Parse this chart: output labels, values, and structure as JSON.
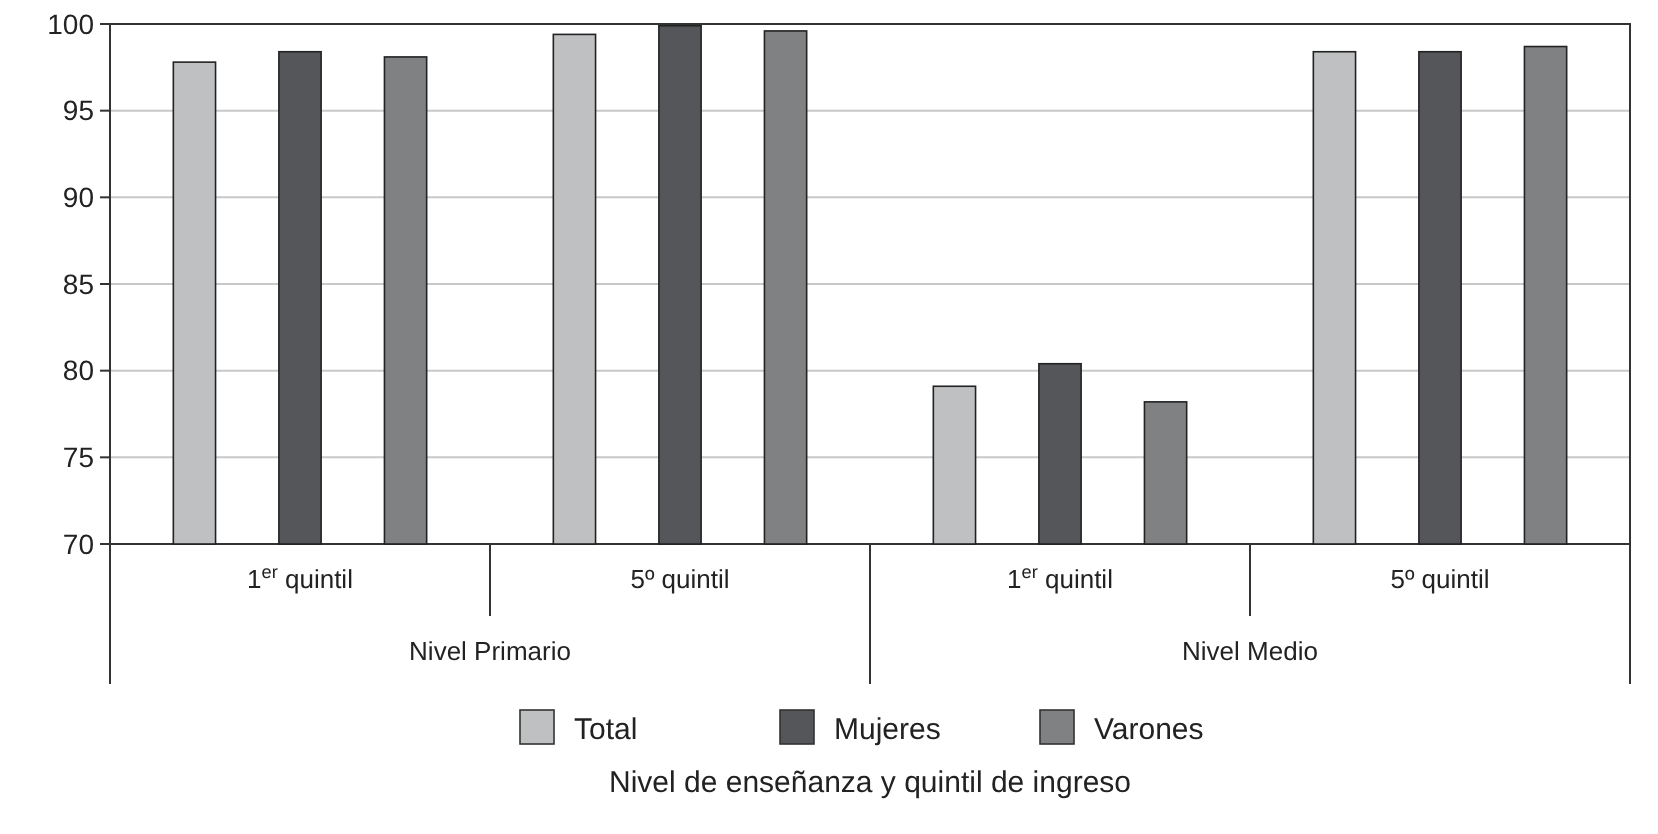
{
  "chart_data": {
    "type": "bar",
    "categories": [
      "1$^{er}$ quintil",
      "5º quintil",
      "1$^{er}$ quintil",
      "5º quintil"
    ],
    "annotations": [
      "Nivel Primario",
      "Nivel Medio",
      "Nivel de enseñanza y quintil de ingreso"
    ],
    "series": [
      {
        "name": "Total",
        "color": "#bfc0c2",
        "values": [
          97.8,
          99.4,
          79.1,
          98.4
        ]
      },
      {
        "name": "Mujeres",
        "color": "#55565a",
        "values": [
          98.4,
          99.9,
          80.4,
          98.4
        ]
      },
      {
        "name": "Varones",
        "color": "#808183",
        "values": [
          98.1,
          99.6,
          78.2,
          98.7
        ]
      }
    ],
    "ylim": [
      70,
      100
    ],
    "yticks": [
      70,
      75,
      80,
      85,
      90,
      95,
      100
    ],
    "grid": "y",
    "legend": "bottom"
  }
}
